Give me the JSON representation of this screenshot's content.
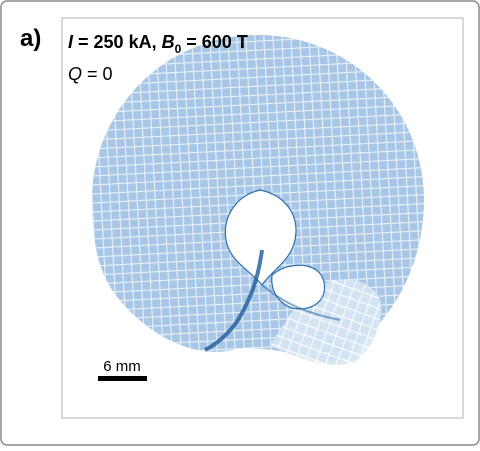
{
  "panel": {
    "label": "a)",
    "line1": {
      "current_symbol": "I",
      "current_text": " = 250 kA, ",
      "field_symbol": "B",
      "field_subscript": "0",
      "field_text": " = 600 T"
    },
    "line2": {
      "charge_symbol": "Q",
      "charge_text": " = 0"
    },
    "scale_bar": "6 mm"
  }
}
